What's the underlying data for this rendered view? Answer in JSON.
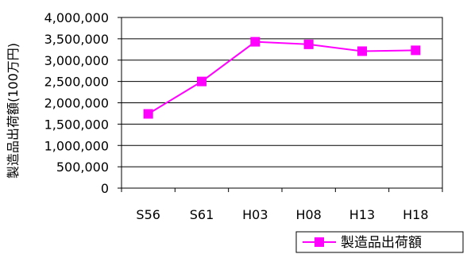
{
  "chart_data": {
    "type": "line",
    "categories": [
      "S56",
      "S61",
      "H03",
      "H08",
      "H13",
      "H18"
    ],
    "series": [
      {
        "name": "製造品出荷額",
        "values": [
          1740000,
          2500000,
          3430000,
          3370000,
          3210000,
          3230000
        ],
        "color": "#ff00ff",
        "marker": "square"
      }
    ],
    "ylabel": "製造品出荷額(100万円)",
    "xlabel": "",
    "title": "",
    "ylim": [
      0,
      4000000
    ],
    "yticks": [
      "0",
      "500,000",
      "1,000,000",
      "1,500,000",
      "2,000,000",
      "2,500,000",
      "3,000,000",
      "3,500,000",
      "4,000,000"
    ],
    "grid": true,
    "legend_position": "bottom-right"
  }
}
